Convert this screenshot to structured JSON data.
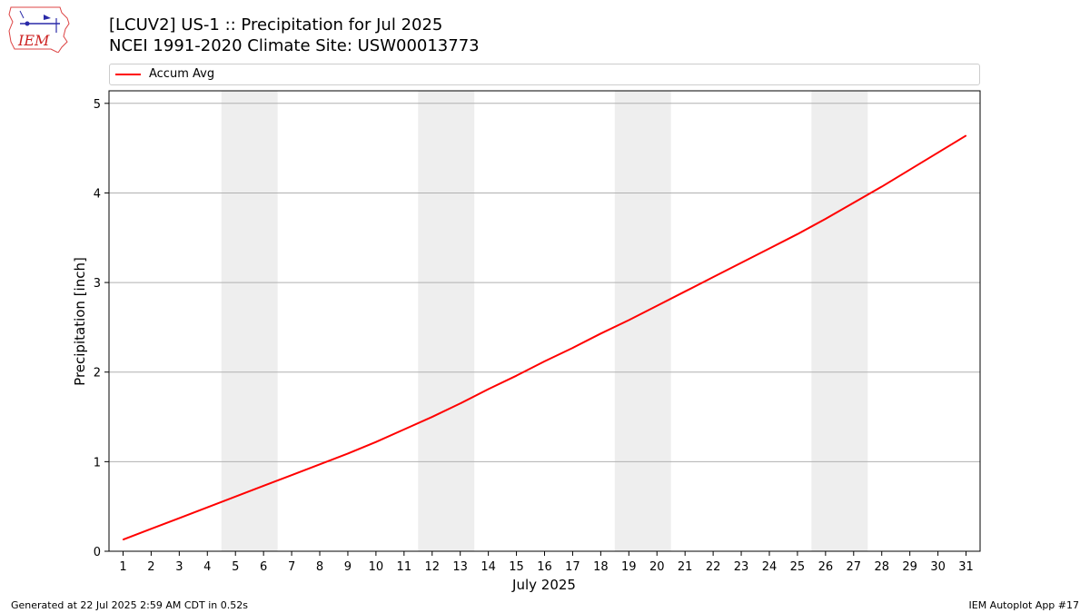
{
  "header": {
    "title_line1": "[LCUV2] US-1 :: Precipitation for Jul 2025",
    "title_line2": "NCEI 1991-2020 Climate Site: USW00013773",
    "logo_text": "IEM"
  },
  "legend": {
    "label": "Accum Avg",
    "color": "#ff0000"
  },
  "footer": {
    "left": "Generated at 22 Jul 2025 2:59 AM CDT in 0.52s",
    "right": "IEM Autoplot App #17"
  },
  "chart_data": {
    "type": "line",
    "title": "[LCUV2] US-1 :: Precipitation for Jul 2025",
    "subtitle": "NCEI 1991-2020 Climate Site: USW00013773",
    "xlabel": "July 2025",
    "ylabel": "Precipitation [inch]",
    "x": [
      1,
      2,
      3,
      4,
      5,
      6,
      7,
      8,
      9,
      10,
      11,
      12,
      13,
      14,
      15,
      16,
      17,
      18,
      19,
      20,
      21,
      22,
      23,
      24,
      25,
      26,
      27,
      28,
      29,
      30,
      31
    ],
    "xlim": [
      0.5,
      31.5
    ],
    "ylim": [
      0,
      5.14
    ],
    "yticks": [
      0,
      1,
      2,
      3,
      4,
      5
    ],
    "grid": "y",
    "legend_position": "top",
    "weekend_shading": [
      [
        4.5,
        6.5
      ],
      [
        11.5,
        13.5
      ],
      [
        18.5,
        20.5
      ],
      [
        25.5,
        27.5
      ]
    ],
    "series": [
      {
        "name": "Accum Avg",
        "color": "#ff0000",
        "values": [
          0.13,
          0.25,
          0.37,
          0.49,
          0.61,
          0.73,
          0.85,
          0.97,
          1.09,
          1.22,
          1.36,
          1.5,
          1.65,
          1.81,
          1.96,
          2.12,
          2.27,
          2.43,
          2.58,
          2.74,
          2.9,
          3.06,
          3.22,
          3.38,
          3.54,
          3.71,
          3.89,
          4.07,
          4.26,
          4.45,
          4.64
        ]
      }
    ]
  }
}
